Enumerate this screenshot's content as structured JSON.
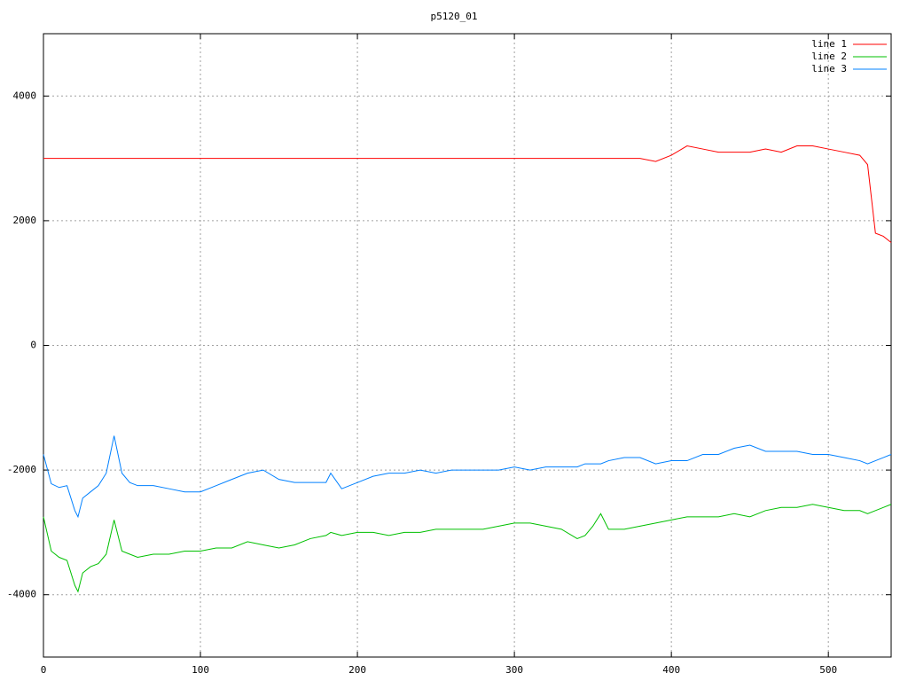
{
  "chart_data": {
    "type": "line",
    "title": "p5120_01",
    "x": [
      0,
      5,
      10,
      15,
      20,
      22,
      25,
      30,
      35,
      40,
      45,
      50,
      55,
      60,
      70,
      80,
      90,
      100,
      110,
      120,
      130,
      140,
      150,
      160,
      170,
      180,
      183,
      190,
      200,
      210,
      220,
      230,
      240,
      250,
      260,
      270,
      280,
      290,
      300,
      310,
      320,
      330,
      340,
      345,
      350,
      355,
      360,
      370,
      380,
      390,
      400,
      410,
      420,
      430,
      440,
      450,
      460,
      470,
      480,
      490,
      500,
      510,
      520,
      525,
      530,
      535,
      540
    ],
    "series": [
      {
        "name": "line 1",
        "color": "#ff0000",
        "values": [
          3000,
          3000,
          3000,
          3000,
          3000,
          3000,
          3000,
          3000,
          3000,
          3000,
          3000,
          3000,
          3000,
          3000,
          3000,
          3000,
          3000,
          3000,
          3000,
          3000,
          3000,
          3000,
          3000,
          3000,
          3000,
          3000,
          3000,
          3000,
          3000,
          3000,
          3000,
          3000,
          3000,
          3000,
          3000,
          3000,
          3000,
          3000,
          3000,
          3000,
          3000,
          3000,
          3000,
          3000,
          3000,
          3000,
          3000,
          3000,
          3000,
          2950,
          3050,
          3200,
          3150,
          3100,
          3100,
          3100,
          3150,
          3100,
          3200,
          3200,
          3150,
          3100,
          3050,
          2900,
          1800,
          1750,
          1650
        ]
      },
      {
        "name": "line 2",
        "color": "#00c000",
        "values": [
          -2750,
          -3300,
          -3400,
          -3450,
          -3850,
          -3950,
          -3650,
          -3550,
          -3500,
          -3350,
          -2800,
          -3300,
          -3350,
          -3400,
          -3350,
          -3350,
          -3300,
          -3300,
          -3250,
          -3250,
          -3150,
          -3200,
          -3250,
          -3200,
          -3100,
          -3050,
          -3000,
          -3050,
          -3000,
          -3000,
          -3050,
          -3000,
          -3000,
          -2950,
          -2950,
          -2950,
          -2950,
          -2900,
          -2850,
          -2850,
          -2900,
          -2950,
          -3100,
          -3050,
          -2900,
          -2700,
          -2950,
          -2950,
          -2900,
          -2850,
          -2800,
          -2750,
          -2750,
          -2750,
          -2700,
          -2750,
          -2650,
          -2600,
          -2600,
          -2550,
          -2600,
          -2650,
          -2650,
          -2700,
          -2650,
          -2600,
          -2550
        ]
      },
      {
        "name": "line 3",
        "color": "#0080ff",
        "values": [
          -1750,
          -2220,
          -2280,
          -2250,
          -2650,
          -2750,
          -2450,
          -2350,
          -2250,
          -2050,
          -1450,
          -2050,
          -2200,
          -2250,
          -2250,
          -2300,
          -2350,
          -2350,
          -2250,
          -2150,
          -2050,
          -2000,
          -2150,
          -2200,
          -2200,
          -2200,
          -2050,
          -2300,
          -2200,
          -2100,
          -2050,
          -2050,
          -2000,
          -2050,
          -2000,
          -2000,
          -2000,
          -2000,
          -1950,
          -2000,
          -1950,
          -1950,
          -1950,
          -1900,
          -1900,
          -1900,
          -1850,
          -1800,
          -1800,
          -1900,
          -1850,
          -1850,
          -1750,
          -1750,
          -1650,
          -1600,
          -1700,
          -1700,
          -1700,
          -1750,
          -1750,
          -1800,
          -1850,
          -1900,
          -1850,
          -1800,
          -1750
        ]
      }
    ],
    "xlim": [
      0,
      540
    ],
    "ylim": [
      -5000,
      5000
    ],
    "xticks": [
      0,
      100,
      200,
      300,
      400,
      500
    ],
    "yticks": [
      -4000,
      -2000,
      0,
      2000,
      4000
    ],
    "grid": true,
    "legend": "top-right"
  }
}
